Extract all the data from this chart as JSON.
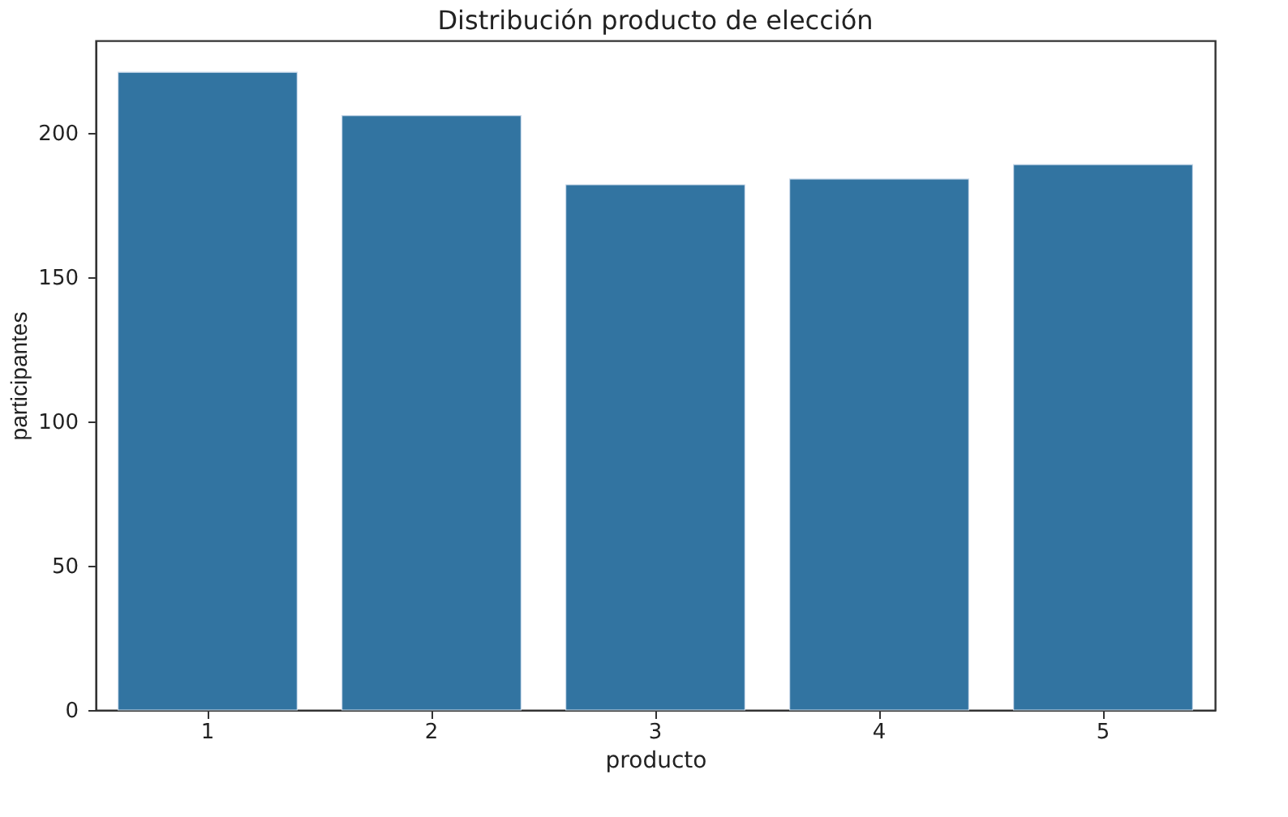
{
  "chart_data": {
    "type": "bar",
    "title": "Distribución producto de elección",
    "xlabel": "producto",
    "ylabel": "participantes",
    "categories": [
      "1",
      "2",
      "3",
      "4",
      "5"
    ],
    "values": [
      221,
      206,
      182,
      184,
      189
    ],
    "color": "#3274a1",
    "ylim": [
      0,
      232
    ],
    "yticks": [
      0,
      50,
      100,
      150,
      200
    ],
    "grid": false
  }
}
